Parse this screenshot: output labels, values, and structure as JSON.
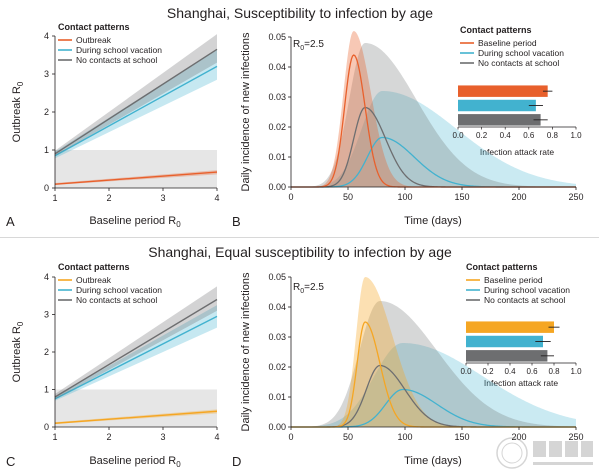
{
  "rows": [
    {
      "title": "Shanghai, Susceptibility to infection by age",
      "left": {
        "panel_letter": "A",
        "legend_title": "Contact patterns",
        "legend": [
          "Outbreak",
          "During school vacation",
          "No contacts at school"
        ],
        "xlabel": "Baseline period R",
        "xlabel_sub": "0",
        "ylabel": "Outbreak R",
        "ylabel_sub": "0"
      },
      "right": {
        "panel_letter": "B",
        "r0_label": "R",
        "r0_sub": "0",
        "r0_value": "=2.5",
        "legend_title": "Contact patterns",
        "legend": [
          "Baseline period",
          "During school vacation",
          "No contacts at school"
        ],
        "xlabel": "Time (days)",
        "ylabel": "Daily incidence of new infections",
        "inset_xlabel": "Infection attack rate"
      }
    },
    {
      "title": "Shanghai, Equal susceptibility to infection by age",
      "left": {
        "panel_letter": "C",
        "legend_title": "Contact patterns",
        "legend": [
          "Outbreak",
          "During school vacation",
          "No contacts at school"
        ],
        "xlabel": "Baseline period R",
        "xlabel_sub": "0",
        "ylabel": "Outbreak R",
        "ylabel_sub": "0"
      },
      "right": {
        "panel_letter": "D",
        "r0_label": "R",
        "r0_sub": "0",
        "r0_value": "=2.5",
        "legend_title": "Contact patterns",
        "legend": [
          "Baseline period",
          "During school vacation",
          "No contacts at school"
        ],
        "xlabel": "Time (days)",
        "ylabel": "Daily incidence of new infections",
        "inset_xlabel": "Infection attack rate"
      }
    }
  ],
  "watermark": {
    "icon": "fudan-university-seal",
    "text": "FUDAN UNIVERSITY"
  },
  "colors": {
    "school_vacation": "#42b2cf",
    "no_school": "#6d6e70",
    "outbreak_top": "#e8602c",
    "outbreak_bottom": "#f5a623",
    "grey_band": "#e6e6e6"
  },
  "chart_data": [
    {
      "panel": "A",
      "type": "line",
      "xlim": [
        1,
        4
      ],
      "ylim": [
        0,
        4
      ],
      "xticks": [
        1,
        2,
        3,
        4
      ],
      "yticks": [
        0,
        1,
        2,
        3,
        4
      ],
      "shaded_band": [
        0,
        1
      ],
      "series": [
        {
          "name": "Outbreak",
          "color": "#e8602c",
          "x": [
            1,
            4
          ],
          "y": [
            0.1,
            0.42
          ],
          "lo": [
            0.08,
            0.36
          ],
          "hi": [
            0.13,
            0.47
          ]
        },
        {
          "name": "During school vacation",
          "color": "#42b2cf",
          "x": [
            1,
            4
          ],
          "y": [
            0.85,
            3.2
          ],
          "lo": [
            0.78,
            2.85
          ],
          "hi": [
            0.95,
            3.65
          ]
        },
        {
          "name": "No contacts at school",
          "color": "#6d6e70",
          "x": [
            1,
            4
          ],
          "y": [
            0.9,
            3.65
          ],
          "lo": [
            0.85,
            3.3
          ],
          "hi": [
            0.98,
            4.05
          ]
        }
      ]
    },
    {
      "panel": "B",
      "type": "line",
      "xlim": [
        0,
        250
      ],
      "ylim": [
        0,
        0.05
      ],
      "xticks": [
        0,
        50,
        100,
        150,
        200,
        250
      ],
      "yticks": [
        0,
        0.01,
        0.02,
        0.03,
        0.04,
        0.05
      ],
      "ytick_labels": [
        "0.00",
        "0.01",
        "0.02",
        "0.03",
        "0.04",
        "0.05"
      ],
      "series": [
        {
          "name": "Baseline period",
          "color": "#e8602c",
          "peak_day": 55,
          "peak": 0.044,
          "sd_left": 8,
          "sd_right": 10,
          "band_hi": 0.052,
          "band_sd_left": 9,
          "band_sd_right": 15
        },
        {
          "name": "During school vacation",
          "color": "#42b2cf",
          "peak_day": 80,
          "peak": 0.0165,
          "sd_left": 13,
          "sd_right": 28,
          "band_hi": 0.032,
          "band_sd_left": 18,
          "band_sd_right": 65
        },
        {
          "name": "No contacts at school",
          "color": "#6d6e70",
          "peak_day": 65,
          "peak": 0.0265,
          "sd_left": 10,
          "sd_right": 18,
          "band_hi": 0.048,
          "band_sd_left": 14,
          "band_sd_right": 45
        }
      ],
      "inset": {
        "type": "bar",
        "xlim": [
          0,
          1
        ],
        "xticks": [
          0,
          0.2,
          0.4,
          0.6,
          0.8,
          1.0
        ],
        "xtick_labels": [
          "0.0",
          "0.2",
          "0.4",
          "0.6",
          "0.8",
          "1.0"
        ],
        "categories": [
          "Baseline period",
          "During school vacation",
          "No contacts at school"
        ],
        "values": [
          0.76,
          0.66,
          0.7
        ],
        "err": [
          0.04,
          0.06,
          0.06
        ],
        "colors": [
          "#e8602c",
          "#42b2cf",
          "#6d6e70"
        ]
      }
    },
    {
      "panel": "C",
      "type": "line",
      "xlim": [
        1,
        4
      ],
      "ylim": [
        0,
        4
      ],
      "xticks": [
        1,
        2,
        3,
        4
      ],
      "yticks": [
        0,
        1,
        2,
        3,
        4
      ],
      "shaded_band": [
        0,
        1
      ],
      "series": [
        {
          "name": "Outbreak",
          "color": "#f5a623",
          "x": [
            1,
            4
          ],
          "y": [
            0.1,
            0.42
          ],
          "lo": [
            0.08,
            0.36
          ],
          "hi": [
            0.13,
            0.47
          ]
        },
        {
          "name": "During school vacation",
          "color": "#42b2cf",
          "x": [
            1,
            4
          ],
          "y": [
            0.75,
            2.95
          ],
          "lo": [
            0.7,
            2.65
          ],
          "hi": [
            0.82,
            3.25
          ]
        },
        {
          "name": "No contacts at school",
          "color": "#6d6e70",
          "x": [
            1,
            4
          ],
          "y": [
            0.8,
            3.4
          ],
          "lo": [
            0.74,
            3.1
          ],
          "hi": [
            0.88,
            3.75
          ]
        }
      ]
    },
    {
      "panel": "D",
      "type": "line",
      "xlim": [
        0,
        250
      ],
      "ylim": [
        0,
        0.05
      ],
      "xticks": [
        0,
        50,
        100,
        150,
        200,
        250
      ],
      "yticks": [
        0,
        0.01,
        0.02,
        0.03,
        0.04,
        0.05
      ],
      "ytick_labels": [
        "0.00",
        "0.01",
        "0.02",
        "0.03",
        "0.04",
        "0.05"
      ],
      "series": [
        {
          "name": "Baseline period",
          "color": "#f5a623",
          "peak_day": 65,
          "peak": 0.035,
          "sd_left": 7,
          "sd_right": 13,
          "band_hi": 0.05,
          "band_sd_left": 8,
          "band_sd_right": 24
        },
        {
          "name": "During school vacation",
          "color": "#42b2cf",
          "peak_day": 98,
          "peak": 0.0125,
          "sd_left": 15,
          "sd_right": 30,
          "band_hi": 0.028,
          "band_sd_left": 25,
          "band_sd_right": 70
        },
        {
          "name": "No contacts at school",
          "color": "#6d6e70",
          "peak_day": 78,
          "peak": 0.0205,
          "sd_left": 12,
          "sd_right": 22,
          "band_hi": 0.042,
          "band_sd_left": 18,
          "band_sd_right": 50
        }
      ],
      "inset": {
        "type": "bar",
        "xlim": [
          0,
          1
        ],
        "xticks": [
          0,
          0.2,
          0.4,
          0.6,
          0.8,
          1.0
        ],
        "xtick_labels": [
          "0.0",
          "0.2",
          "0.4",
          "0.6",
          "0.8",
          "1.0"
        ],
        "categories": [
          "Baseline period",
          "During school vacation",
          "No contacts at school"
        ],
        "values": [
          0.8,
          0.7,
          0.74
        ],
        "err": [
          0.05,
          0.07,
          0.06
        ],
        "colors": [
          "#f5a623",
          "#42b2cf",
          "#6d6e70"
        ]
      }
    }
  ]
}
